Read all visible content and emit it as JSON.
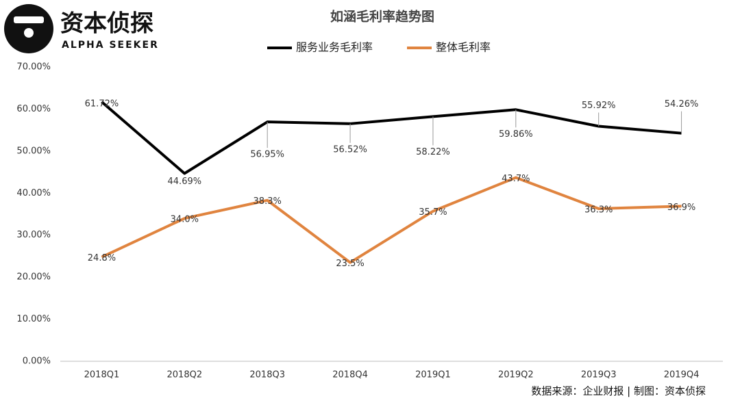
{
  "chart_data": {
    "type": "line",
    "title": "如涵毛利率趋势图",
    "brand_name": "资本侦探",
    "brand_tagline": "ALPHA SEEKER",
    "source": "数据来源：企业财报 | 制图：资本侦探",
    "categories": [
      "2018Q1",
      "2018Q2",
      "2018Q3",
      "2018Q4",
      "2019Q1",
      "2019Q2",
      "2019Q3",
      "2019Q4"
    ],
    "series": [
      {
        "name": "服务业务毛利率",
        "color": "#000000",
        "values": [
          61.72,
          44.69,
          56.95,
          56.52,
          58.22,
          59.86,
          55.92,
          54.26
        ],
        "value_labels": [
          "61.72%",
          "44.69%",
          "56.95%",
          "56.52%",
          "58.22%",
          "59.86%",
          "55.92%",
          "54.26%"
        ]
      },
      {
        "name": "整体毛利率",
        "color": "#e0843f",
        "values": [
          24.8,
          34.0,
          38.3,
          23.5,
          35.7,
          43.7,
          36.3,
          36.9
        ],
        "value_labels": [
          "24.8%",
          "34.0%",
          "38.3%",
          "23.5%",
          "35.7%",
          "43.7%",
          "36.3%",
          "36.9%"
        ]
      }
    ],
    "ylim": [
      0,
      70
    ],
    "yticks": [
      {
        "value": 0,
        "label": "0.00%"
      },
      {
        "value": 10,
        "label": "10.00%"
      },
      {
        "value": 20,
        "label": "20.00%"
      },
      {
        "value": 30,
        "label": "30.00%"
      },
      {
        "value": 40,
        "label": "40.00%"
      },
      {
        "value": 50,
        "label": "50.00%"
      },
      {
        "value": 60,
        "label": "60.00%"
      },
      {
        "value": 70,
        "label": "70.00%"
      }
    ],
    "grid": false,
    "legend": "top"
  }
}
